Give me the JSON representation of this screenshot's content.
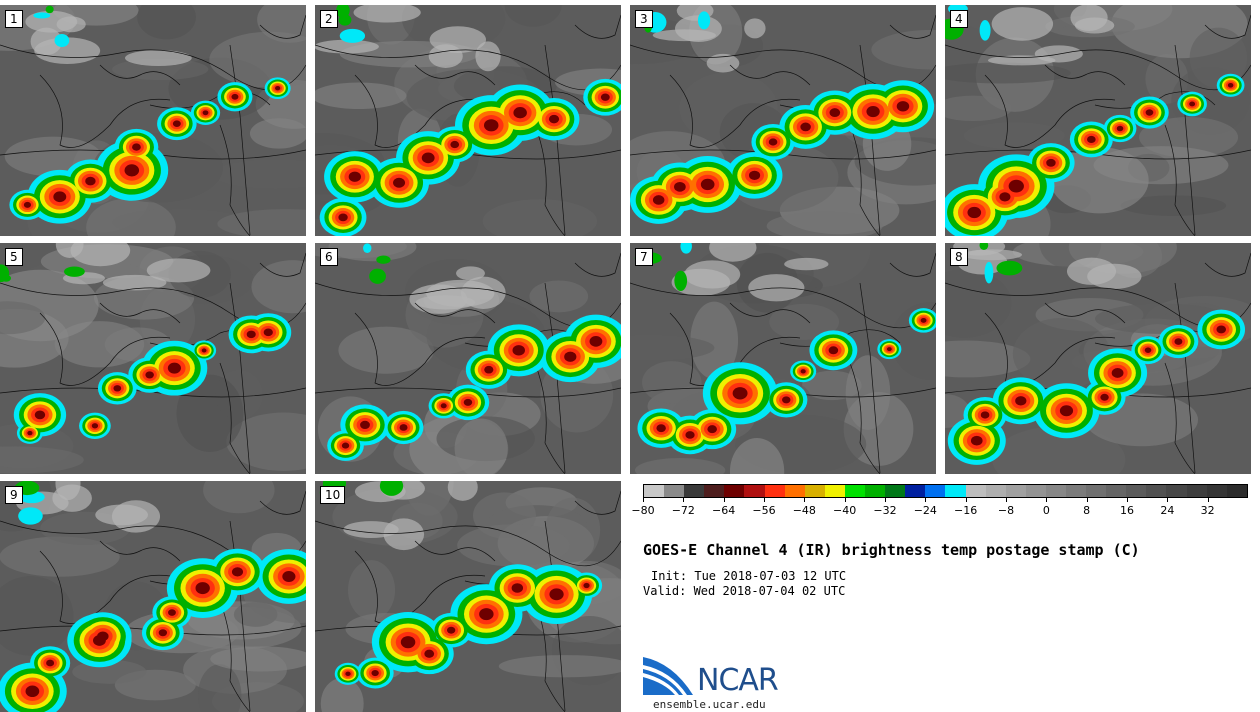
{
  "panels": [
    {
      "id": "p1",
      "label": "1"
    },
    {
      "id": "p2",
      "label": "2"
    },
    {
      "id": "p3",
      "label": "3"
    },
    {
      "id": "p4",
      "label": "4"
    },
    {
      "id": "p5",
      "label": "5"
    },
    {
      "id": "p6",
      "label": "6"
    },
    {
      "id": "p7",
      "label": "7"
    },
    {
      "id": "p8",
      "label": "8"
    },
    {
      "id": "p9",
      "label": "9"
    },
    {
      "id": "p10",
      "label": "10"
    }
  ],
  "colorbar": {
    "colors": [
      "#c8c8c8",
      "#8a8a8a",
      "#3a3a3a",
      "#4e1e1e",
      "#6e0000",
      "#b01010",
      "#ff3010",
      "#ff7000",
      "#d8b000",
      "#f0f000",
      "#00e000",
      "#00b000",
      "#007818",
      "#0020a0",
      "#0070f0",
      "#00e8f8",
      "#bdbdbd",
      "#aeaeae",
      "#a0a0a0",
      "#939393",
      "#878787",
      "#7b7b7b",
      "#707070",
      "#656565",
      "#5b5b5b",
      "#515151",
      "#474747",
      "#3e3e3e",
      "#353535",
      "#2c2c2c"
    ],
    "tick_labels": [
      "−80",
      "−72",
      "−64",
      "−56",
      "−48",
      "−40",
      "−32",
      "−24",
      "−16",
      "−8",
      "0",
      "8",
      "16",
      "24",
      "32"
    ],
    "min": -80,
    "max": 40
  },
  "title": "GOES-E Channel 4 (IR) brightness temp postage stamp (C)",
  "init": "Init: Tue 2018-07-03 12 UTC",
  "valid": "Valid: Wed 2018-07-04 02 UTC",
  "logo": {
    "text": "NCAR",
    "url": "ensemble.ucar.edu",
    "icon": "ncar-logo-icon"
  }
}
